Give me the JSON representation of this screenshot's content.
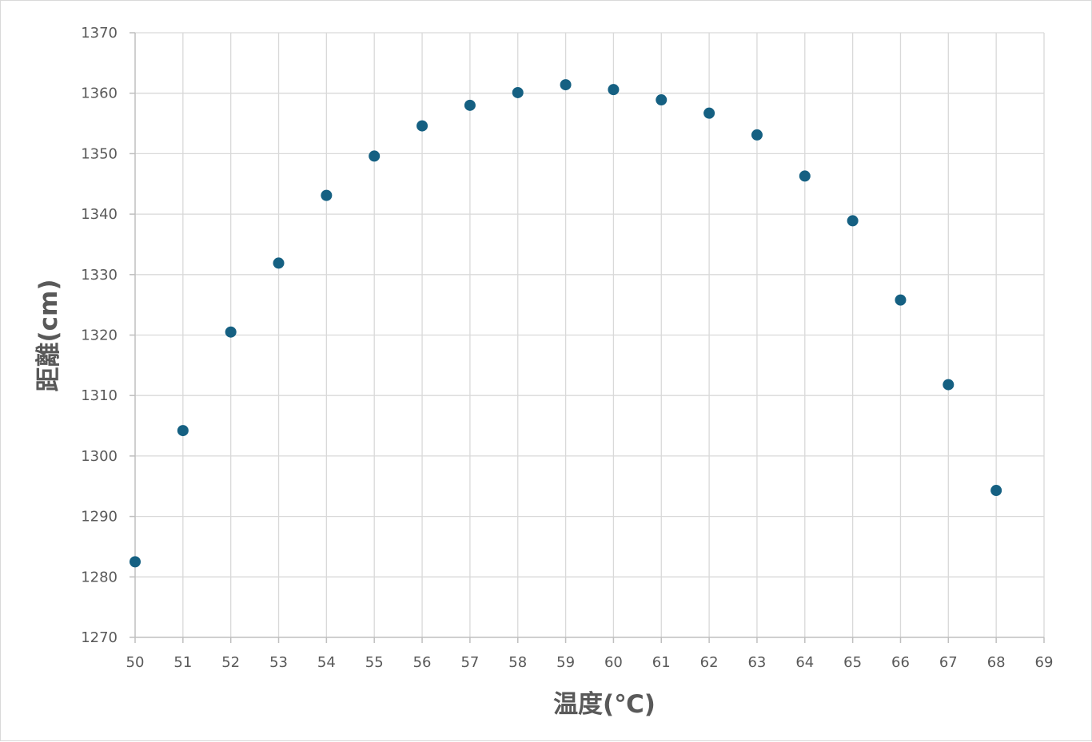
{
  "chart_data": {
    "type": "scatter",
    "title": "",
    "xlabel": "温度(℃)",
    "ylabel": "距離(cm)",
    "xlim": [
      50,
      69
    ],
    "ylim": [
      1270,
      1370
    ],
    "x_ticks": [
      50,
      51,
      52,
      53,
      54,
      55,
      56,
      57,
      58,
      59,
      60,
      61,
      62,
      63,
      64,
      65,
      66,
      67,
      68,
      69
    ],
    "y_ticks": [
      1270,
      1280,
      1290,
      1300,
      1310,
      1320,
      1330,
      1340,
      1350,
      1360,
      1370
    ],
    "grid": true,
    "legend": "none",
    "series": [
      {
        "color": "#156082",
        "points": [
          {
            "x": 50,
            "y": 1282.5
          },
          {
            "x": 51,
            "y": 1304.2
          },
          {
            "x": 52,
            "y": 1320.5
          },
          {
            "x": 53,
            "y": 1331.9
          },
          {
            "x": 54,
            "y": 1343.1
          },
          {
            "x": 55,
            "y": 1349.6
          },
          {
            "x": 56,
            "y": 1354.6
          },
          {
            "x": 57,
            "y": 1358.0
          },
          {
            "x": 58,
            "y": 1360.1
          },
          {
            "x": 59,
            "y": 1361.4
          },
          {
            "x": 60,
            "y": 1360.6
          },
          {
            "x": 61,
            "y": 1358.9
          },
          {
            "x": 62,
            "y": 1356.7
          },
          {
            "x": 63,
            "y": 1353.1
          },
          {
            "x": 64,
            "y": 1346.3
          },
          {
            "x": 65,
            "y": 1338.9
          },
          {
            "x": 66,
            "y": 1325.8
          },
          {
            "x": 67,
            "y": 1311.8
          },
          {
            "x": 68,
            "y": 1294.3
          }
        ]
      }
    ],
    "colors": {
      "grid": "#d9d9d9",
      "axis": "#bfbfbf",
      "text": "#595959",
      "marker": "#156082"
    }
  }
}
